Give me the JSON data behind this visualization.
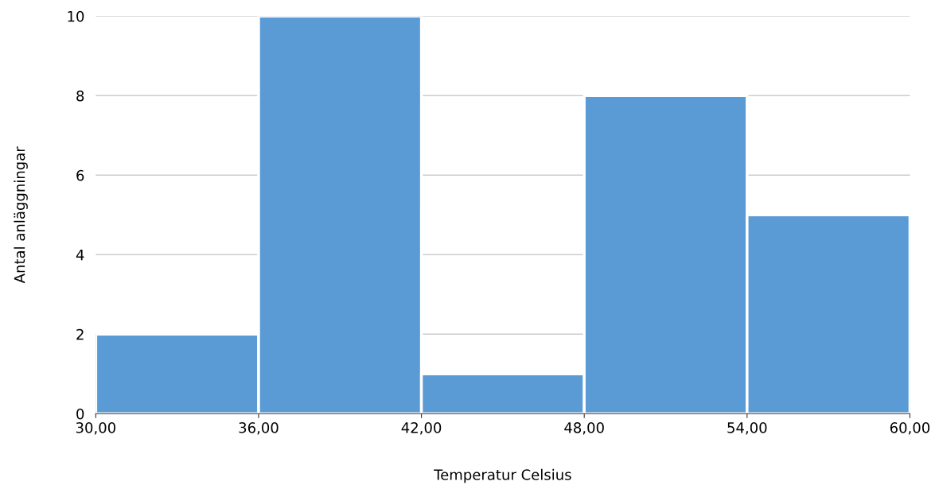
{
  "chart_data": {
    "type": "histogram",
    "xlabel": "Temperatur Celsius",
    "ylabel": "Antal anläggningar",
    "bins": [
      30,
      36,
      42,
      48,
      54,
      60
    ],
    "values": [
      2,
      10,
      1,
      8,
      5
    ],
    "color": "#5b9bd5",
    "xlim": [
      30,
      60
    ],
    "xticks": [
      {
        "value": 30,
        "label": "30,00"
      },
      {
        "value": 36,
        "label": "36,00"
      },
      {
        "value": 42,
        "label": "42,00"
      },
      {
        "value": 48,
        "label": "48,00"
      },
      {
        "value": 54,
        "label": "54,00"
      },
      {
        "value": 60,
        "label": "60,00"
      }
    ],
    "ylim": [
      0,
      10
    ],
    "yticks": [
      0,
      2,
      4,
      6,
      8,
      10
    ],
    "grid": "y"
  }
}
